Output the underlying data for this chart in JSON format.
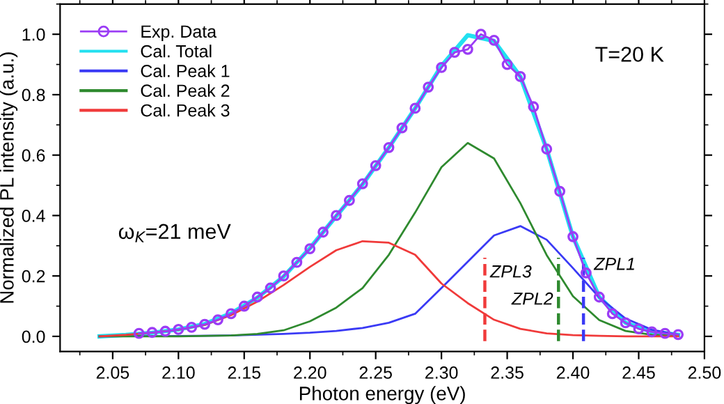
{
  "chart_data": {
    "type": "line",
    "xlabel": "Photon energy (eV)",
    "ylabel": "Normalized PL intensity (a.u.)",
    "xlim": [
      2.01,
      2.5
    ],
    "ylim": [
      -0.05,
      1.1
    ],
    "xticks": [
      {
        "value": 2.05,
        "label": "2.05"
      },
      {
        "value": 2.1,
        "label": "2.10"
      },
      {
        "value": 2.15,
        "label": "2.15"
      },
      {
        "value": 2.2,
        "label": "2.20"
      },
      {
        "value": 2.25,
        "label": "2.25"
      },
      {
        "value": 2.3,
        "label": "2.30"
      },
      {
        "value": 2.35,
        "label": "2.35"
      },
      {
        "value": 2.4,
        "label": "2.40"
      },
      {
        "value": 2.45,
        "label": "2.45"
      },
      {
        "value": 2.5,
        "label": "2.50"
      }
    ],
    "yticks": [
      {
        "value": 0,
        "label": "0.0"
      },
      0.2,
      0.4,
      0.6,
      0.8,
      {
        "value": 1,
        "label": "1.0"
      }
    ],
    "grid": false,
    "legend": "top left",
    "series": [
      {
        "name": "Exp. Data",
        "marker": "circle",
        "color": "#9b3cf5",
        "x": [
          2.07,
          2.08,
          2.09,
          2.1,
          2.11,
          2.12,
          2.13,
          2.14,
          2.15,
          2.16,
          2.17,
          2.18,
          2.19,
          2.2,
          2.21,
          2.22,
          2.23,
          2.24,
          2.25,
          2.26,
          2.27,
          2.28,
          2.29,
          2.3,
          2.31,
          2.32,
          2.33,
          2.34,
          2.35,
          2.36,
          2.37,
          2.38,
          2.39,
          2.4,
          2.41,
          2.42,
          2.43,
          2.44,
          2.45,
          2.46,
          2.47,
          2.48
        ],
        "values": [
          0.01,
          0.013,
          0.017,
          0.023,
          0.03,
          0.04,
          0.055,
          0.075,
          0.1,
          0.13,
          0.16,
          0.2,
          0.245,
          0.29,
          0.345,
          0.4,
          0.45,
          0.505,
          0.565,
          0.625,
          0.69,
          0.755,
          0.825,
          0.89,
          0.94,
          0.95,
          1.0,
          0.98,
          0.9,
          0.86,
          0.76,
          0.62,
          0.48,
          0.33,
          0.21,
          0.13,
          0.075,
          0.045,
          0.025,
          0.015,
          0.01,
          0.006
        ]
      },
      {
        "name": "Cal. Total",
        "marker": "none",
        "color": "#22e0f0",
        "x": [
          2.04,
          2.06,
          2.08,
          2.1,
          2.12,
          2.14,
          2.16,
          2.18,
          2.2,
          2.22,
          2.24,
          2.26,
          2.28,
          2.3,
          2.32,
          2.34,
          2.36,
          2.38,
          2.4,
          2.42,
          2.44,
          2.46,
          2.48
        ],
        "values": [
          0,
          0.005,
          0.012,
          0.023,
          0.041,
          0.076,
          0.128,
          0.198,
          0.292,
          0.398,
          0.503,
          0.625,
          0.755,
          0.895,
          0.997,
          0.978,
          0.86,
          0.62,
          0.33,
          0.13,
          0.045,
          0.015,
          0.005
        ]
      },
      {
        "name": "Cal. Peak 1",
        "marker": "none",
        "color": "#3a3af5",
        "x": [
          2.04,
          2.1,
          2.14,
          2.18,
          2.2,
          2.22,
          2.24,
          2.26,
          2.28,
          2.3,
          2.32,
          2.34,
          2.36,
          2.38,
          2.4,
          2.42,
          2.44,
          2.46,
          2.48
        ],
        "values": [
          0,
          0.001,
          0.003,
          0.008,
          0.012,
          0.018,
          0.028,
          0.045,
          0.075,
          0.16,
          0.247,
          0.334,
          0.365,
          0.32,
          0.226,
          0.129,
          0.059,
          0.022,
          0.006
        ]
      },
      {
        "name": "Cal. Peak 2",
        "marker": "none",
        "color": "#2f8a2f",
        "x": [
          2.04,
          2.1,
          2.14,
          2.16,
          2.18,
          2.2,
          2.22,
          2.24,
          2.26,
          2.28,
          2.3,
          2.32,
          2.34,
          2.36,
          2.38,
          2.4,
          2.42,
          2.44,
          2.46,
          2.48
        ],
        "values": [
          0,
          0,
          0.003,
          0.008,
          0.02,
          0.05,
          0.095,
          0.16,
          0.27,
          0.41,
          0.56,
          0.64,
          0.589,
          0.441,
          0.269,
          0.133,
          0.054,
          0.018,
          0.005,
          0.001
        ]
      },
      {
        "name": "Cal. Peak 3",
        "marker": "none",
        "color": "#f03a3a",
        "x": [
          2.04,
          2.06,
          2.08,
          2.1,
          2.12,
          2.14,
          2.16,
          2.18,
          2.2,
          2.22,
          2.24,
          2.26,
          2.28,
          2.3,
          2.32,
          2.34,
          2.36,
          2.38,
          2.4,
          2.42,
          2.44,
          2.46,
          2.48
        ],
        "values": [
          0,
          0.005,
          0.012,
          0.022,
          0.038,
          0.07,
          0.115,
          0.17,
          0.23,
          0.285,
          0.315,
          0.31,
          0.27,
          0.175,
          0.11,
          0.055,
          0.025,
          0.01,
          0.004,
          0.002,
          0,
          0,
          0
        ]
      }
    ],
    "ref_lines": [
      {
        "axis": "x",
        "value": 2.333,
        "label": "ZPL3",
        "color": "#f03a3a",
        "line_style": "dashed"
      },
      {
        "axis": "x",
        "value": 2.389,
        "label": "ZPL2",
        "color": "#2f8a2f",
        "line_style": "dashed"
      },
      {
        "axis": "x",
        "value": 2.408,
        "label": "ZPL1",
        "color": "#3a3af5",
        "line_style": "dashed"
      }
    ],
    "annotations": [
      "T=20 K",
      "ω$_{K}$=21 meV"
    ]
  }
}
